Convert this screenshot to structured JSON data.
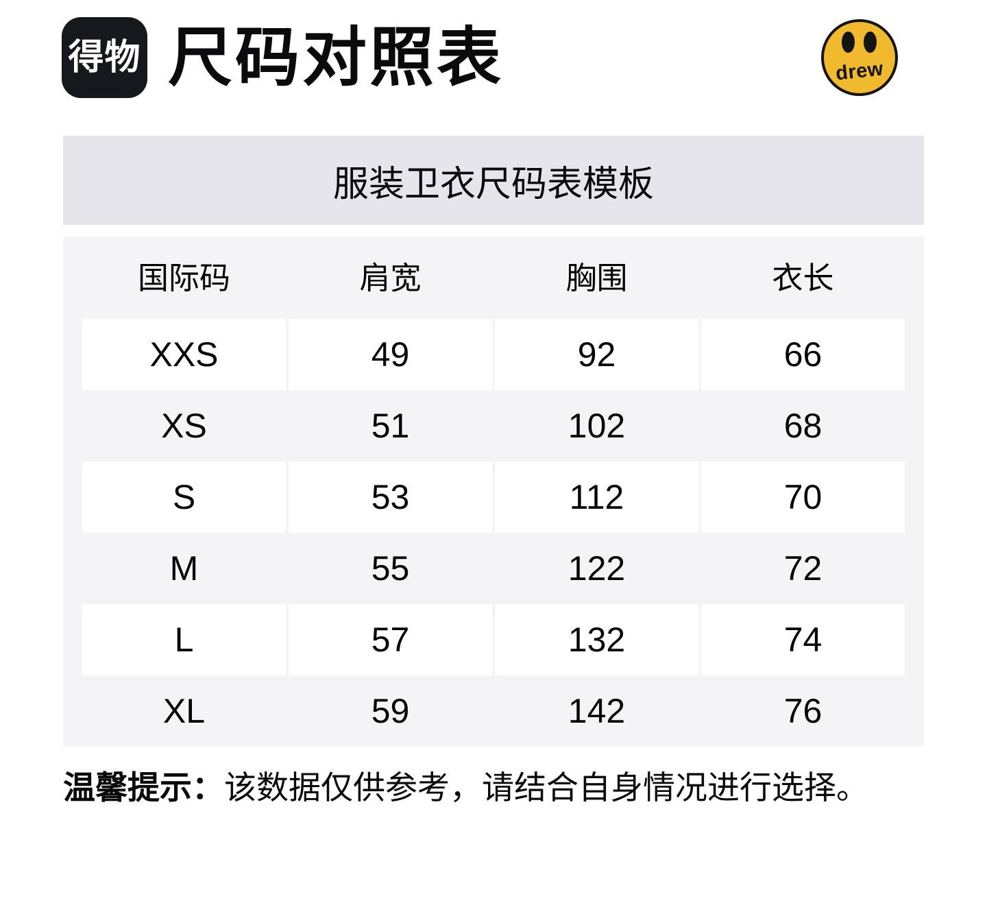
{
  "header": {
    "app_name": "得物",
    "title": "尺码对照表"
  },
  "brand_logo": {
    "name": "drew smiley face",
    "text": "drew",
    "bg_color": "#f0b92e",
    "outline_color": "#141414"
  },
  "chart_data": {
    "type": "table",
    "title": "服装卫衣尺码表模板",
    "columns": [
      "国际码",
      "肩宽",
      "胸围",
      "衣长"
    ],
    "rows": [
      [
        "XXS",
        49,
        92,
        66
      ],
      [
        "XS",
        51,
        102,
        68
      ],
      [
        "S",
        53,
        112,
        70
      ],
      [
        "M",
        55,
        122,
        72
      ],
      [
        "L",
        57,
        132,
        74
      ],
      [
        "XL",
        59,
        142,
        76
      ]
    ],
    "layout": "alternating rows: white cells on light-gray panel, no visible grid lines, all cells center-aligned"
  },
  "note": {
    "label": "温馨提示：",
    "text": "该数据仅供参考，请结合自身情况进行选择。"
  },
  "colors": {
    "dewu_logo_bg": "#17181d",
    "banner_bg": "#e6e5ec",
    "table_panel_bg": "#f4f4f7",
    "row_cell_bg": "#ffffff",
    "text": "#0a0a0c"
  }
}
